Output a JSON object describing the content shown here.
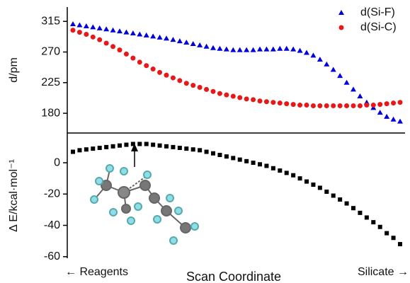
{
  "chart_data": [
    {
      "type": "scatter",
      "ylabel": "d/pm",
      "ylim": [
        151,
        336
      ],
      "yticks": [
        180,
        225,
        270,
        315
      ],
      "legend": "upper right",
      "series": [
        {
          "name": "d(Si-F)",
          "color": "#0000dd",
          "marker": "triangle",
          "values": [
            311,
            309.5,
            308,
            306.5,
            305,
            303.5,
            302,
            300.5,
            299,
            297.5,
            296,
            294.5,
            293,
            291.5,
            290,
            288,
            286,
            284,
            282,
            280,
            278,
            276,
            275,
            274,
            273,
            273,
            273,
            273,
            274,
            274,
            274,
            275,
            275,
            274,
            272,
            269,
            265,
            259,
            252,
            244,
            235,
            225,
            215,
            205,
            196,
            188,
            181,
            175,
            171,
            168
          ]
        },
        {
          "name": "d(Si-C)",
          "color": "#e81818",
          "marker": "circle",
          "values": [
            302,
            299,
            296,
            292,
            288,
            283,
            278,
            273,
            267,
            261,
            255,
            250,
            245,
            240,
            236,
            232,
            228,
            224,
            221,
            218,
            215,
            212,
            209,
            207,
            205,
            203,
            201,
            200,
            198,
            197,
            196,
            195,
            194,
            193,
            192,
            192,
            191,
            191,
            191,
            191,
            191,
            191,
            191,
            191,
            192,
            192,
            193,
            194,
            195,
            196
          ]
        }
      ]
    },
    {
      "type": "scatter",
      "ylabel": "Δ E/kcal·mol⁻¹",
      "ylim": [
        -61,
        19
      ],
      "yticks": [
        0,
        -20,
        -40,
        -60
      ],
      "xlabel": "Scan Coordinate",
      "left_note": "← Reagents",
      "right_note": "Silicate →",
      "series": [
        {
          "color": "#000000",
          "marker": "square",
          "values": [
            7,
            8,
            8.5,
            9,
            9.5,
            10,
            10.5,
            11,
            11.5,
            12,
            12,
            12,
            11.5,
            11,
            10.5,
            10,
            9.5,
            9,
            8.5,
            8,
            7,
            6,
            5,
            4,
            3,
            2,
            1,
            0,
            -1,
            -2,
            -3.5,
            -5,
            -6.5,
            -8,
            -10,
            -12,
            -14,
            -16,
            -18.5,
            -21,
            -23.5,
            -26,
            -29,
            -32,
            -35,
            -38,
            -41,
            -45,
            -48,
            -52
          ]
        }
      ]
    }
  ]
}
